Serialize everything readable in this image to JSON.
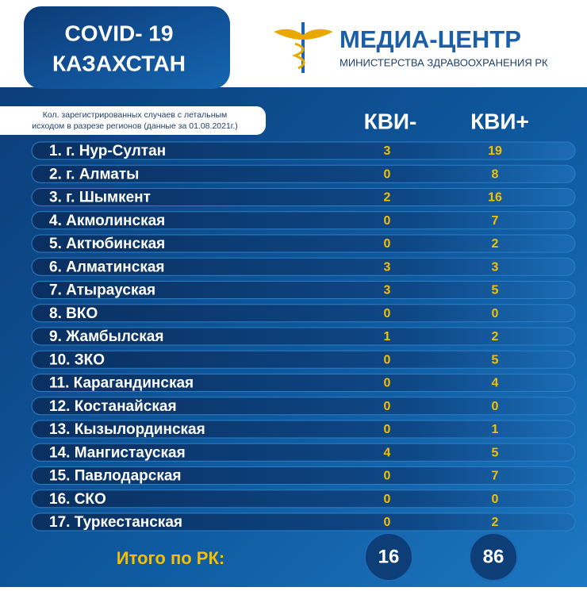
{
  "header": {
    "title_line1": "COVID- 19",
    "title_line2": "КАЗАХСТАН",
    "logo_title": "МЕДИА-ЦЕНТР",
    "logo_subtitle": "МИНИСТЕРСТВА ЗДРАВООХРАНЕНИЯ РК"
  },
  "subtitle": [
    "Кол. зарегистрированных  случаев с летальным",
    "исходом в разрезе регионов  (данные за 01.08.2021г.)"
  ],
  "table": {
    "columns": [
      "КВИ-",
      "КВИ+"
    ],
    "rows": [
      [
        "1. г. Нур-Султан",
        3,
        19
      ],
      [
        "2. г. Алматы",
        0,
        8
      ],
      [
        "3. г. Шымкент",
        2,
        16
      ],
      [
        "4. Акмолинская",
        0,
        7
      ],
      [
        "5. Актюбинская",
        0,
        2
      ],
      [
        "6. Алматинская",
        3,
        3
      ],
      [
        "7. Атырауская",
        3,
        5
      ],
      [
        "8. ВКО",
        0,
        0
      ],
      [
        "9. Жамбылская",
        1,
        2
      ],
      [
        "10. ЗКО",
        0,
        5
      ],
      [
        "11. Карагандинская",
        0,
        4
      ],
      [
        "12. Костанайская",
        0,
        0
      ],
      [
        "13. Кызылординская",
        0,
        1
      ],
      [
        "14. Мангистауская",
        4,
        5
      ],
      [
        "15. Павлодарская",
        0,
        7
      ],
      [
        "16. СКО",
        0,
        0
      ],
      [
        "17. Туркестанская",
        0,
        2
      ]
    ],
    "total": {
      "label": "Итого по РК:",
      "values": [
        16,
        86
      ]
    }
  }
}
